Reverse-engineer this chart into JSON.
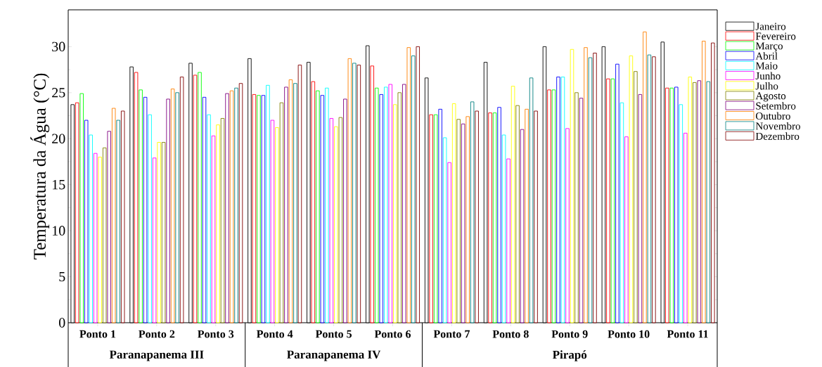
{
  "chart_data": {
    "type": "bar",
    "ylabel": "Temperatura da Água (°C)",
    "categories": [
      "Ponto 1",
      "Ponto 2",
      "Ponto 3",
      "Ponto 4",
      "Ponto 5",
      "Ponto 6",
      "Ponto 7",
      "Ponto 8",
      "Ponto 9",
      "Ponto 10",
      "Ponto 11"
    ],
    "series": [
      {
        "name": "Janeiro",
        "color": "#000000",
        "values": [
          23.7,
          27.8,
          28.2,
          28.7,
          28.3,
          30.1,
          26.6,
          28.3,
          30.0,
          30.0,
          30.5
        ]
      },
      {
        "name": "Fevereiro",
        "color": "#ff0000",
        "values": [
          23.9,
          27.2,
          26.9,
          24.8,
          26.2,
          27.9,
          22.6,
          22.8,
          25.3,
          26.5,
          25.5
        ]
      },
      {
        "name": "Março",
        "color": "#00ff00",
        "values": [
          24.9,
          25.3,
          27.2,
          24.7,
          25.2,
          25.5,
          22.6,
          22.8,
          25.3,
          26.5,
          25.5
        ]
      },
      {
        "name": "Abril",
        "color": "#0000ff",
        "values": [
          22.0,
          24.5,
          24.5,
          24.7,
          24.7,
          24.8,
          23.2,
          23.4,
          26.7,
          28.1,
          25.6
        ]
      },
      {
        "name": "Maio",
        "color": "#00ffff",
        "values": [
          20.4,
          22.6,
          22.6,
          25.8,
          25.5,
          25.6,
          20.1,
          20.4,
          26.7,
          23.9,
          23.7
        ]
      },
      {
        "name": "Junho",
        "color": "#ff00ff",
        "values": [
          18.4,
          17.9,
          20.3,
          22.0,
          22.2,
          25.9,
          17.4,
          17.8,
          21.1,
          20.2,
          20.6
        ]
      },
      {
        "name": "Julho",
        "color": "#ffff00",
        "values": [
          18.0,
          19.6,
          21.5,
          21.2,
          21.3,
          23.7,
          23.8,
          25.7,
          29.7,
          29.0,
          26.7
        ]
      },
      {
        "name": "Agosto",
        "color": "#808000",
        "values": [
          19.0,
          19.6,
          22.2,
          23.9,
          22.3,
          25.0,
          22.1,
          23.6,
          25.0,
          27.3,
          26.1
        ]
      },
      {
        "name": "Setembro",
        "color": "#800080",
        "values": [
          20.8,
          24.3,
          24.9,
          25.6,
          24.3,
          25.9,
          21.6,
          21.0,
          24.4,
          24.8,
          26.3
        ]
      },
      {
        "name": "Outubro",
        "color": "#ff8000",
        "values": [
          23.3,
          25.4,
          25.2,
          26.4,
          28.7,
          29.9,
          22.4,
          23.2,
          29.9,
          31.6,
          30.6
        ]
      },
      {
        "name": "Novembro",
        "color": "#008080",
        "values": [
          22.0,
          25.0,
          25.5,
          26.0,
          28.2,
          29.0,
          24.0,
          26.6,
          28.8,
          29.1,
          26.2
        ]
      },
      {
        "name": "Dezembro",
        "color": "#800000",
        "values": [
          23.0,
          26.7,
          26.0,
          28.0,
          28.0,
          30.0,
          23.0,
          23.0,
          29.3,
          28.9,
          30.4
        ]
      }
    ],
    "ylim": [
      0,
      34
    ],
    "yticks": [
      0,
      5,
      10,
      15,
      20,
      25,
      30
    ],
    "legend": "right",
    "annotations": [
      "Paranapanema III",
      "Paranapanema IV",
      "Pirapó"
    ]
  }
}
